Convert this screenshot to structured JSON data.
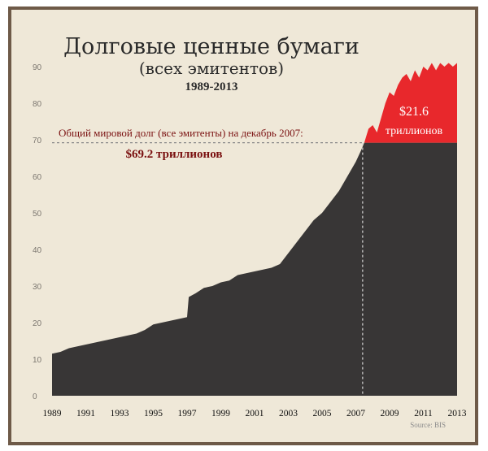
{
  "chart_data": {
    "type": "area",
    "title": "Долговые ценные бумаги",
    "subtitle": "(всех эмитентов)",
    "years_label": "1989-2013",
    "source": "Source: BIS",
    "xlabel": "",
    "ylabel": "",
    "xlim": [
      1989,
      2013
    ],
    "ylim": [
      0,
      90
    ],
    "y_ticks": [
      0,
      10,
      20,
      30,
      40,
      50,
      60,
      70,
      80,
      90
    ],
    "x_ticks": [
      1989,
      1991,
      1993,
      1995,
      1997,
      1999,
      2001,
      2003,
      2005,
      2007,
      2009,
      2011,
      2013
    ],
    "grid": false,
    "colors": {
      "area": "#383636",
      "increase": "#e8282c",
      "annotation": "#7a1010",
      "background": "#efe8d8"
    },
    "series": [
      {
        "x": [
          1989,
          1989.5,
          1990,
          1990.5,
          1991,
          1991.5,
          1992,
          1992.5,
          1993,
          1993.5,
          1994,
          1994.5,
          1995,
          1995.5,
          1996,
          1996.5,
          1997,
          1997.1,
          1997.5,
          1998,
          1998.5,
          1999,
          1999.5,
          2000,
          2000.5,
          2001,
          2001.5,
          2002,
          2002.5,
          2003,
          2003.5,
          2004,
          2004.5,
          2005,
          2005.5,
          2006,
          2006.5,
          2007,
          2007.3,
          2007.5,
          2007.75,
          2008,
          2008.25,
          2008.5,
          2008.75,
          2009,
          2009.25,
          2009.5,
          2009.75,
          2010,
          2010.25,
          2010.5,
          2010.75,
          2011,
          2011.25,
          2011.5,
          2011.75,
          2012,
          2012.25,
          2012.5,
          2012.75,
          2013
        ],
        "values": [
          11.5,
          12,
          13,
          13.5,
          14,
          14.5,
          15,
          15.5,
          16,
          16.5,
          17,
          18,
          19.5,
          20,
          20.5,
          21,
          21.5,
          27,
          28,
          29.5,
          30,
          31,
          31.5,
          33,
          33.5,
          34,
          34.5,
          35,
          36,
          39,
          42,
          45,
          48,
          50,
          53,
          56,
          60,
          64,
          67,
          69.2,
          73,
          74,
          72,
          76,
          80,
          83,
          82,
          85,
          87,
          88,
          86,
          89,
          87,
          90,
          89,
          91,
          89,
          91,
          90,
          91,
          90,
          91
        ]
      }
    ],
    "annotations": [
      {
        "text": "Общий мировой долг (все эмитенты) на декабрь 2007:",
        "value_text": "$69.2 триллионов",
        "x": 2007.5,
        "y": 69.2
      },
      {
        "value_text": "$21.6",
        "unit_text": "триллионов",
        "from": 69.2,
        "to": 90.8
      }
    ]
  }
}
